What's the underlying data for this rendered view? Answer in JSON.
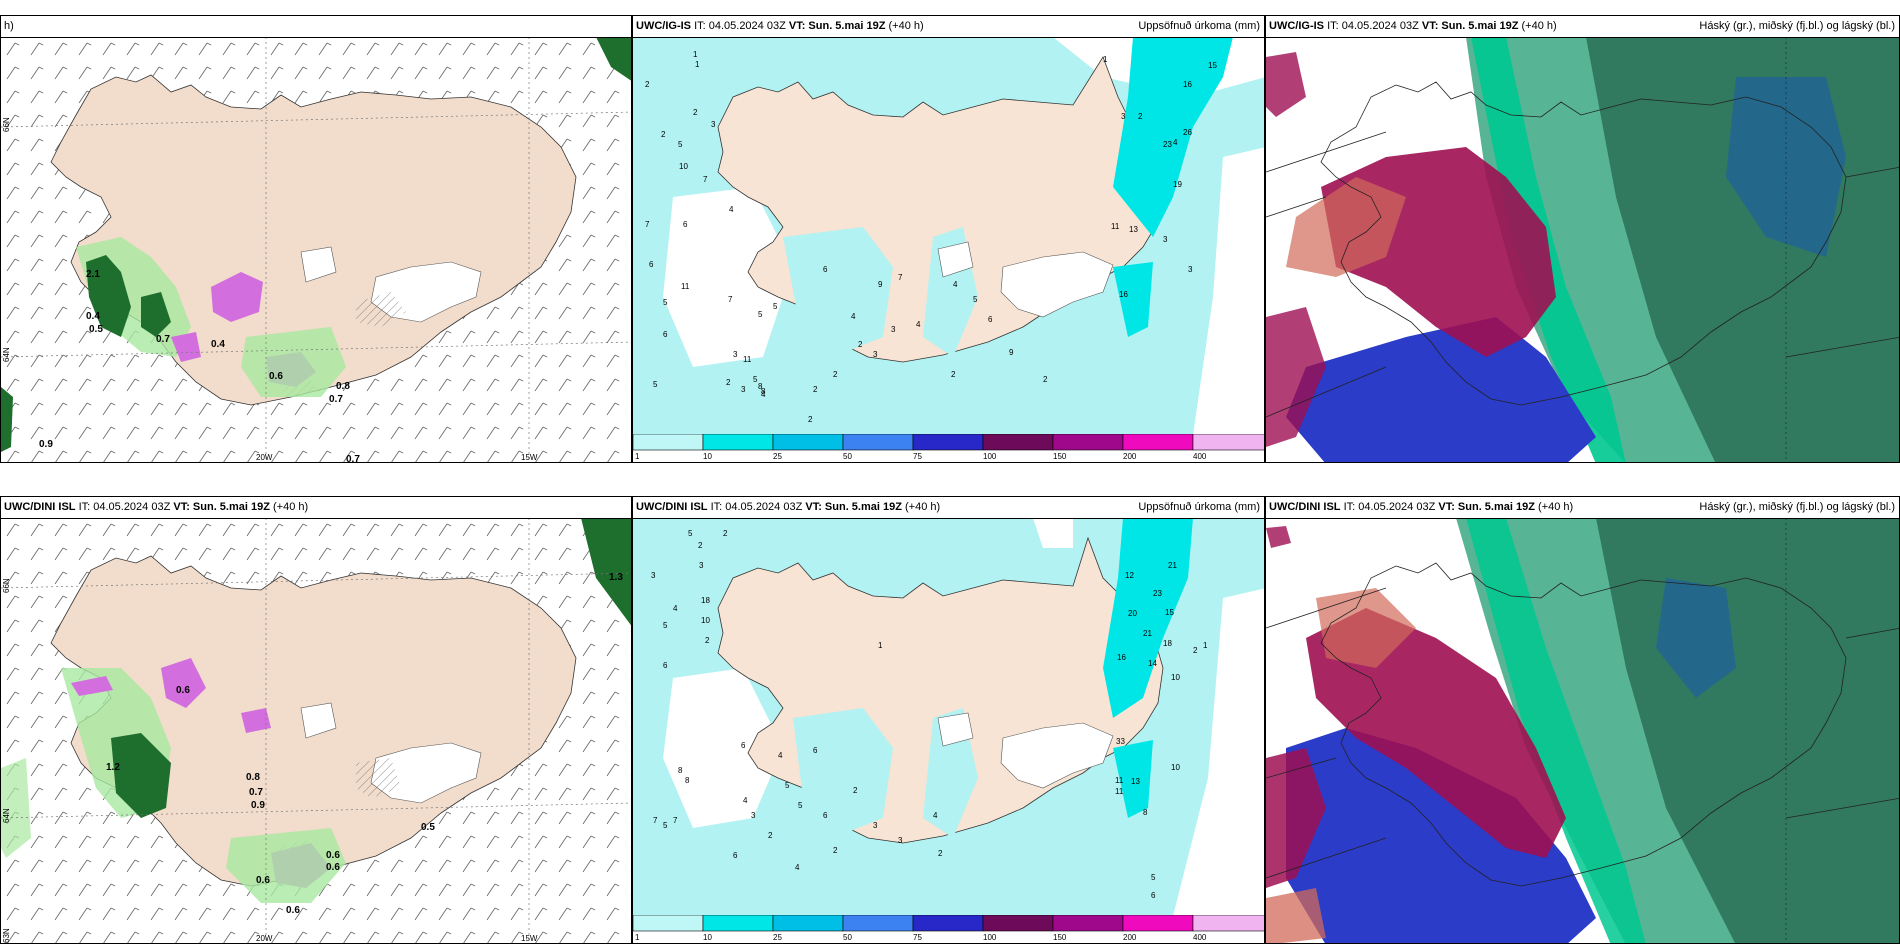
{
  "panels": {
    "p1": {
      "model": "",
      "it": "",
      "vt": "",
      "lead": "h)",
      "right": ""
    },
    "p2": {
      "model": "UWC/IG-IS",
      "it": "IT: 04.05.2024 03Z",
      "vt": "VT: Sun. 5.mai 19Z",
      "lead": "(+40 h)",
      "right": "Uppsöfnuð úrkoma (mm)"
    },
    "p3": {
      "model": "UWC/IG-IS",
      "it": "IT: 04.05.2024 03Z",
      "vt": "VT: Sun. 5.mai 19Z",
      "lead": "(+40 h)",
      "right": "Háský (gr.), miðský (fj.bl.) og lágský (bl.)"
    },
    "p4": {
      "model": "UWC/DINI ISL",
      "it": "IT: 04.05.2024 03Z",
      "vt": "VT: Sun. 5.mai 19Z",
      "lead": "(+40 h)",
      "right": ""
    },
    "p5": {
      "model": "UWC/DINI ISL",
      "it": "IT: 04.05.2024 03Z",
      "vt": "VT: Sun. 5.mai 19Z",
      "lead": "(+40 h)",
      "right": "Uppsöfnuð úrkoma (mm)"
    },
    "p6": {
      "model": "UWC/DINI ISL",
      "it": "IT: 04.05.2024 03Z",
      "vt": "VT: Sun. 5.mai 19Z",
      "lead": "(+40 h)",
      "right": "Háský (gr.), miðský (fj.bl.) og lágský (bl.)"
    }
  },
  "grid_labels": {
    "lon20": "20W",
    "lon15": "15W",
    "lat66": "66N",
    "lat64": "64N",
    "lat63": "63N"
  },
  "colorbar": {
    "labels": [
      "1",
      "10",
      "25",
      "50",
      "75",
      "100",
      "150",
      "200",
      "400"
    ],
    "colors": [
      "#bff7f7",
      "#00e6e6",
      "#00bfe6",
      "#3c82f0",
      "#2828c8",
      "#6e0a5a",
      "#a0088c",
      "#f00abe",
      "#f0b4f0"
    ]
  },
  "colors": {
    "land": "#f7e4d4",
    "glacier": "#ffffff",
    "precip_light": "#b2f2f2",
    "precip_mid": "#00e6e6",
    "magenta": "#d26ede",
    "wind_green": "#1e6e2d",
    "cloud_high": "#9e0f52",
    "cloud_mid": "#2d7a5a",
    "cloud_low": "#2a3cc8"
  },
  "p1_values": [
    "0.4",
    "0.5",
    "0.7",
    "0.4",
    "0.6",
    "0.8",
    "0.7",
    "0.9",
    "0.7",
    "2.1"
  ],
  "p4_values": [
    "0.6",
    "1.2",
    "0.8",
    "0.7",
    "0.9",
    "0.6",
    "0.6",
    "0.6",
    "1.3",
    "0.6",
    "0.5"
  ],
  "p2_values": [
    "1",
    "1",
    "2",
    "2",
    "3",
    "2",
    "5",
    "7",
    "10",
    "6",
    "4",
    "7",
    "6",
    "5",
    "5",
    "6",
    "11",
    "2",
    "3",
    "5",
    "4",
    "3",
    "7",
    "5",
    "8",
    "5",
    "11",
    "8",
    "2",
    "3",
    "2",
    "2",
    "2",
    "6",
    "4",
    "9",
    "7",
    "3",
    "4",
    "4",
    "5",
    "6",
    "9",
    "2",
    "2",
    "15",
    "16",
    "26",
    "23",
    "19",
    "11",
    "13",
    "3",
    "3",
    "16",
    "4",
    "1",
    "2",
    "3"
  ],
  "p5_values": [
    "5",
    "2",
    "3",
    "2",
    "4",
    "5",
    "18",
    "10",
    "3",
    "2",
    "6",
    "8",
    "8",
    "7",
    "5",
    "7",
    "6",
    "4",
    "6",
    "2",
    "3",
    "4",
    "5",
    "5",
    "6",
    "6",
    "2",
    "4",
    "2",
    "3",
    "3",
    "4",
    "1",
    "2",
    "12",
    "21",
    "23",
    "15",
    "20",
    "21",
    "18",
    "14",
    "16",
    "10",
    "10",
    "33",
    "13",
    "11",
    "11",
    "8",
    "5",
    "6",
    "2",
    "1"
  ]
}
